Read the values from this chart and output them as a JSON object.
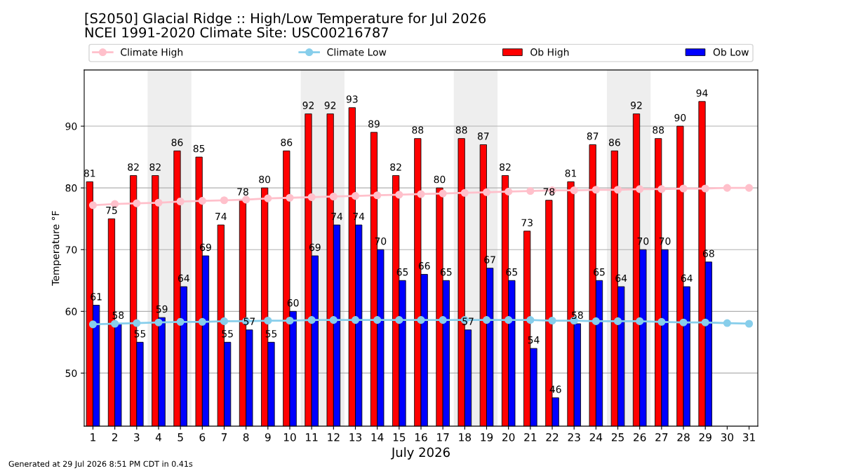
{
  "chart_data": {
    "type": "bar",
    "title": "[S2050] Glacial Ridge :: High/Low Temperature for Jul 2026",
    "subtitle": "NCEI 1991-2020 Climate Site: USC00216787",
    "xlabel": "July 2026",
    "ylabel": "Temperature °F",
    "x": [
      1,
      2,
      3,
      4,
      5,
      6,
      7,
      8,
      9,
      10,
      11,
      12,
      13,
      14,
      15,
      16,
      17,
      18,
      19,
      20,
      21,
      22,
      23,
      24,
      25,
      26,
      27,
      28,
      29,
      30,
      31
    ],
    "xlim": [
      0.6,
      31.4
    ],
    "xticks": [
      1,
      2,
      3,
      4,
      5,
      6,
      7,
      8,
      9,
      10,
      11,
      12,
      13,
      14,
      15,
      16,
      17,
      18,
      19,
      20,
      21,
      22,
      23,
      24,
      25,
      26,
      27,
      28,
      29,
      30,
      31
    ],
    "ylim": [
      41.4,
      99.1
    ],
    "yticks": [
      50,
      60,
      70,
      80,
      90
    ],
    "grid": "y",
    "legend": "top",
    "marker": "circle",
    "series": [
      {
        "name": "Climate High",
        "type": "line",
        "color": "#ffc0cb",
        "values": [
          77.2,
          77.4,
          77.5,
          77.6,
          77.8,
          77.9,
          78.0,
          78.1,
          78.3,
          78.4,
          78.5,
          78.6,
          78.7,
          78.8,
          78.9,
          79.0,
          79.1,
          79.2,
          79.3,
          79.4,
          79.5,
          79.6,
          79.6,
          79.7,
          79.7,
          79.8,
          79.8,
          79.9,
          79.9,
          80.0,
          80.0
        ]
      },
      {
        "name": "Climate Low",
        "type": "line",
        "color": "#87ceeb",
        "values": [
          57.9,
          58.0,
          58.1,
          58.2,
          58.3,
          58.3,
          58.4,
          58.4,
          58.5,
          58.5,
          58.6,
          58.6,
          58.6,
          58.6,
          58.6,
          58.6,
          58.6,
          58.6,
          58.6,
          58.6,
          58.6,
          58.5,
          58.5,
          58.4,
          58.4,
          58.4,
          58.3,
          58.2,
          58.2,
          58.1,
          58.0
        ]
      },
      {
        "name": "Ob High",
        "color": "#ff0000",
        "values": [
          81,
          75,
          82,
          82,
          86,
          85,
          74,
          78,
          80,
          86,
          92,
          92,
          93,
          89,
          82,
          88,
          80,
          88,
          87,
          82,
          73,
          78,
          81,
          87,
          86,
          92,
          88,
          90,
          94,
          null,
          null
        ],
        "value_labels": [
          "81",
          "75",
          "82",
          "82",
          "86",
          "85",
          "74",
          "78",
          "80",
          "86",
          "92",
          "92",
          "93",
          "89",
          "82",
          "88",
          "80",
          "88",
          "87",
          "82",
          "73",
          "78",
          "81",
          "87",
          "86",
          "92",
          "88",
          "90",
          "94",
          null,
          null
        ]
      },
      {
        "name": "Ob Low",
        "color": "#0000ff",
        "values": [
          61,
          58,
          55,
          59,
          64,
          69,
          55,
          57,
          55,
          60,
          69,
          74,
          74,
          70,
          65,
          66,
          65,
          57,
          67,
          65,
          54,
          46,
          58,
          65,
          64,
          70,
          70,
          64,
          68,
          null,
          null
        ],
        "value_labels": [
          "61",
          "58",
          "55",
          "59",
          "64",
          "69",
          "55",
          "57",
          "55",
          "60",
          "69",
          "74",
          "74",
          "70",
          "65",
          "66",
          "65",
          "57",
          "67",
          "65",
          "54",
          "46",
          "58",
          "65",
          "64",
          "70",
          "70",
          "64",
          "68",
          null,
          null
        ]
      }
    ],
    "bands": [
      {
        "axis": "x",
        "from": 3.5,
        "to": 5.5,
        "color": "#eeeeee"
      },
      {
        "axis": "x",
        "from": 10.5,
        "to": 12.5,
        "color": "#eeeeee"
      },
      {
        "axis": "x",
        "from": 17.5,
        "to": 19.5,
        "color": "#eeeeee"
      },
      {
        "axis": "x",
        "from": 24.5,
        "to": 26.5,
        "color": "#eeeeee"
      }
    ],
    "annotations": [
      "Generated at 29 Jul 2026 8:51 PM CDT in 0.41s"
    ]
  }
}
